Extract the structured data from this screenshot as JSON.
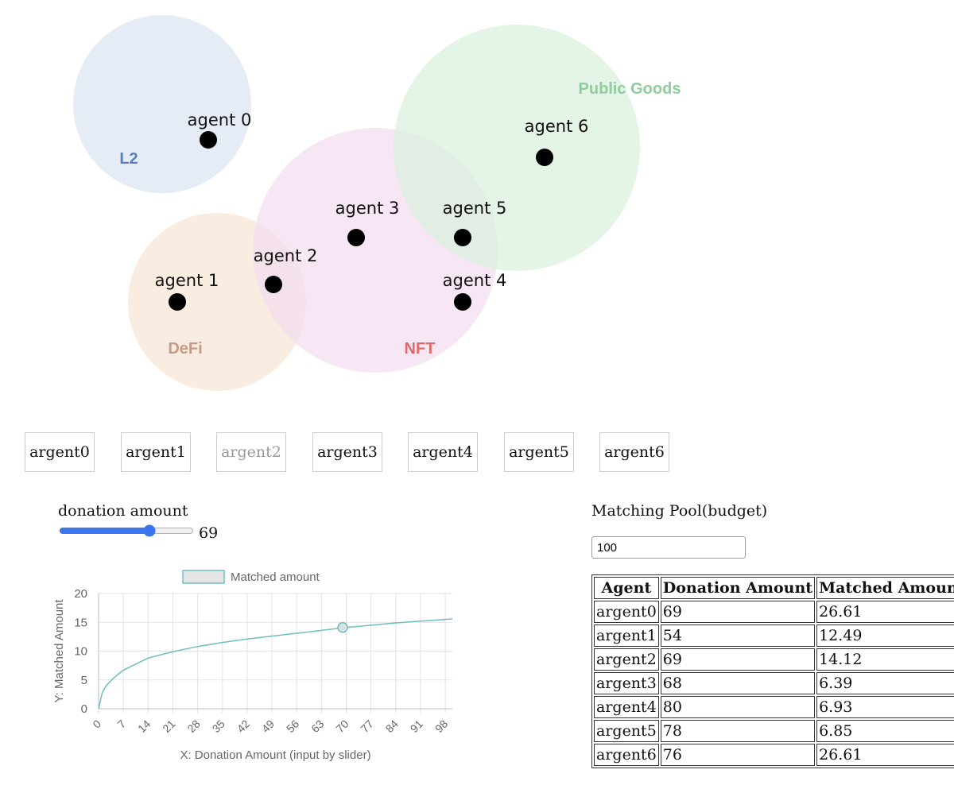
{
  "venn": {
    "sets": [
      {
        "name": "L2",
        "fill": "#dbe4f1",
        "label_color": "#5d7fb8"
      },
      {
        "name": "DeFi",
        "fill": "#f7e6d6",
        "label_color": "#c79a86"
      },
      {
        "name": "NFT",
        "fill": "#f3dcf0",
        "label_color": "#e06a6a"
      },
      {
        "name": "Public Goods",
        "fill": "#d8f0dc",
        "label_color": "#8fcc9c"
      }
    ],
    "agents": [
      "agent 0",
      "agent 1",
      "agent 2",
      "agent 3",
      "agent 4",
      "agent 5",
      "agent 6"
    ]
  },
  "agent_buttons": [
    {
      "label": "argent0",
      "disabled": false
    },
    {
      "label": "argent1",
      "disabled": false
    },
    {
      "label": "argent2",
      "disabled": true
    },
    {
      "label": "argent3",
      "disabled": false
    },
    {
      "label": "argent4",
      "disabled": false
    },
    {
      "label": "argent5",
      "disabled": false
    },
    {
      "label": "argent6",
      "disabled": false
    }
  ],
  "donation": {
    "label": "donation amount",
    "value": 69,
    "min": 0,
    "max": 100
  },
  "pool": {
    "label": "Matching Pool(budget)",
    "value": "100"
  },
  "chart_data": {
    "type": "line",
    "legend": "Matched amount",
    "xlabel": "X: Donation Amount (input by slider)",
    "ylabel": "Y: Matched Amount",
    "xlim": [
      0,
      100
    ],
    "ylim": [
      0,
      20
    ],
    "x_ticks": [
      0,
      7,
      14,
      21,
      28,
      35,
      42,
      49,
      56,
      63,
      70,
      77,
      84,
      91,
      98
    ],
    "y_ticks": [
      0,
      5,
      10,
      15,
      20
    ],
    "line_color": "#6dbfc0",
    "series": [
      {
        "name": "Matched amount",
        "x": [
          0,
          1,
          2,
          4,
          7,
          10,
          14,
          21,
          28,
          35,
          42,
          49,
          56,
          63,
          70,
          77,
          84,
          91,
          98,
          100
        ],
        "y": [
          0,
          2.7,
          3.9,
          5.2,
          6.7,
          7.6,
          8.8,
          9.9,
          10.8,
          11.5,
          12.1,
          12.6,
          13.1,
          13.6,
          14.1,
          14.5,
          14.9,
          15.2,
          15.5,
          15.6
        ]
      }
    ],
    "highlight_point": {
      "x": 69,
      "y": 14.1
    }
  },
  "table": {
    "headers": [
      "Agent",
      "Donation Amount",
      "Matched Amount"
    ],
    "rows": [
      [
        "argent0",
        "69",
        "26.61"
      ],
      [
        "argent1",
        "54",
        "12.49"
      ],
      [
        "argent2",
        "69",
        "14.12"
      ],
      [
        "argent3",
        "68",
        "6.39"
      ],
      [
        "argent4",
        "80",
        "6.93"
      ],
      [
        "argent5",
        "78",
        "6.85"
      ],
      [
        "argent6",
        "76",
        "26.61"
      ]
    ]
  }
}
